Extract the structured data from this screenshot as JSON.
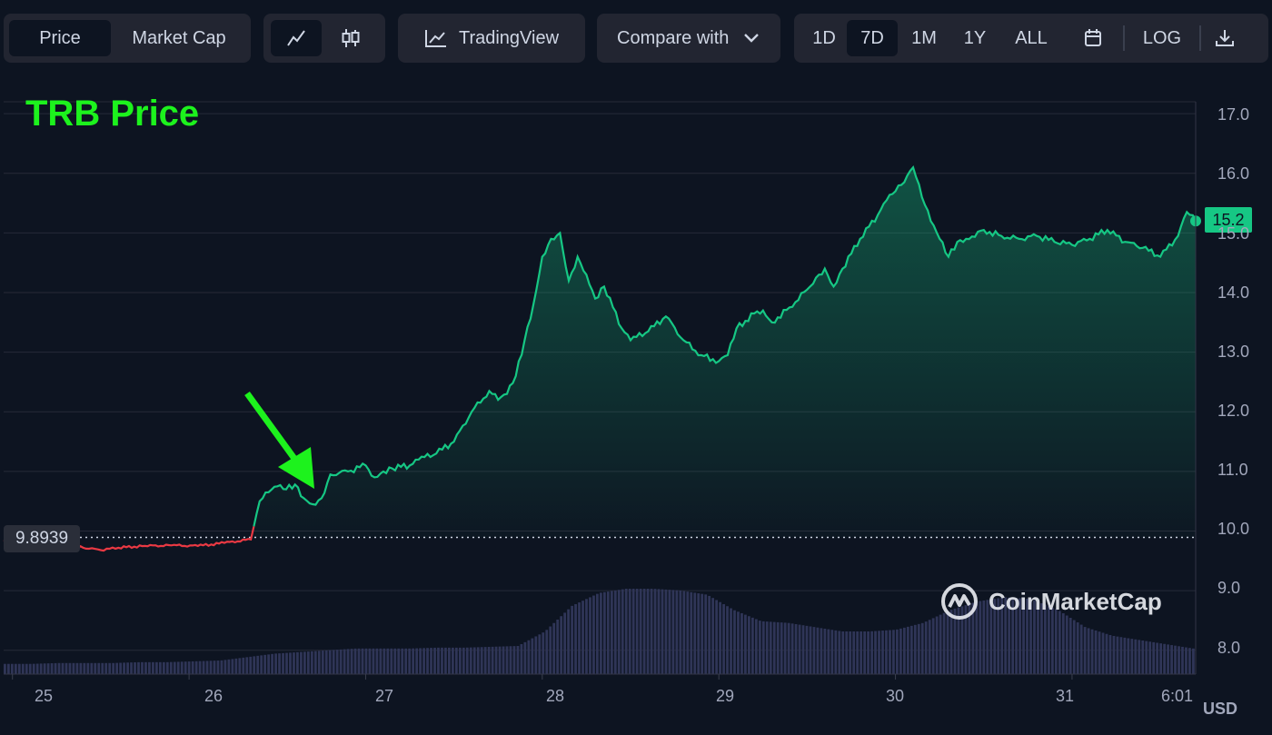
{
  "toolbar": {
    "view_tabs": [
      "Price",
      "Market Cap"
    ],
    "tradingview_label": "TradingView",
    "compare_label": "Compare with",
    "ranges": [
      "1D",
      "7D",
      "1M",
      "1Y",
      "ALL"
    ],
    "active_range": "7D",
    "log_label": "LOG",
    "icons": {
      "line_chart": "line-chart-icon",
      "candles": "candlestick-icon",
      "tradingview": "tradingview-chart-icon",
      "compare": "chevron-down-icon",
      "calendar": "calendar-icon",
      "download": "download-icon"
    }
  },
  "annotation_title": "TRB Price",
  "watermark": "CoinMarketCap",
  "current_price_label": "15.2",
  "open_price_label": "9.8939",
  "currency_label": "USD",
  "colors": {
    "up": "#16c784",
    "down": "#ea3943",
    "annotation": "#1df21d",
    "volume": "#2f3557",
    "background": "#0d1421"
  },
  "chart_data": {
    "type": "line",
    "ylim": [
      7.6,
      17.2
    ],
    "y_ticks": [
      "17.0",
      "16.0",
      "15.0",
      "14.0",
      "13.0",
      "12.0",
      "11.0",
      "10.0",
      "9.0",
      "8.0"
    ],
    "x_tick_labels": [
      "25",
      "26",
      "27",
      "28",
      "29",
      "30",
      "31",
      "6:01 P"
    ],
    "baseline": 9.8939,
    "series": [
      {
        "x": [
          24.95,
          25.1,
          25.25,
          25.4,
          25.5,
          25.6,
          25.75,
          25.9,
          26.05,
          26.2,
          26.35,
          26.4,
          26.45,
          26.5,
          26.55,
          26.6,
          26.65,
          26.7,
          26.75,
          26.8,
          26.9,
          27.0,
          27.05,
          27.1,
          27.15,
          27.25,
          27.3,
          27.4,
          27.5,
          27.6,
          27.7,
          27.75,
          27.8,
          27.85,
          27.9,
          27.95,
          28.0,
          28.05,
          28.1,
          28.15,
          28.2,
          28.25,
          28.3,
          28.35,
          28.45,
          28.5,
          28.6,
          28.7,
          28.8,
          28.9,
          29.0,
          29.05,
          29.1,
          29.2,
          29.25,
          29.3,
          29.4,
          29.5,
          29.55,
          29.6,
          29.65,
          29.7,
          29.8,
          29.9,
          29.95,
          30.0,
          30.05,
          30.1,
          30.15,
          30.2,
          30.25,
          30.3,
          30.35,
          30.4,
          30.5,
          30.6,
          30.7,
          30.8,
          30.9,
          31.0,
          31.1,
          31.2,
          31.3,
          31.4,
          31.5,
          31.6,
          31.65,
          31.7
        ],
        "y": [
          9.85,
          9.83,
          9.8,
          9.72,
          9.68,
          9.72,
          9.75,
          9.76,
          9.75,
          9.8,
          9.86,
          10.5,
          10.65,
          10.75,
          10.7,
          10.78,
          10.55,
          10.45,
          10.55,
          10.95,
          11.0,
          11.1,
          10.9,
          11.0,
          11.05,
          11.1,
          11.2,
          11.3,
          11.5,
          12.0,
          12.35,
          12.2,
          12.3,
          12.6,
          13.2,
          13.8,
          14.6,
          14.9,
          15.0,
          14.2,
          14.6,
          14.3,
          13.9,
          14.1,
          13.4,
          13.2,
          13.35,
          13.6,
          13.2,
          12.95,
          12.85,
          12.95,
          13.4,
          13.65,
          13.7,
          13.5,
          13.75,
          14.05,
          14.25,
          14.4,
          14.1,
          14.4,
          14.9,
          15.3,
          15.55,
          15.7,
          15.85,
          16.1,
          15.6,
          15.2,
          14.9,
          14.6,
          14.85,
          14.9,
          15.05,
          14.95,
          14.9,
          14.95,
          14.85,
          14.8,
          14.9,
          15.05,
          14.85,
          14.75,
          14.6,
          14.95,
          15.35,
          15.2
        ]
      }
    ],
    "volume_relative": [
      0.12,
      0.12,
      0.13,
      0.13,
      0.13,
      0.14,
      0.14,
      0.15,
      0.16,
      0.2,
      0.24,
      0.26,
      0.28,
      0.3,
      0.3,
      0.3,
      0.31,
      0.31,
      0.32,
      0.33,
      0.5,
      0.8,
      0.95,
      1.0,
      1.0,
      0.98,
      0.93,
      0.75,
      0.62,
      0.6,
      0.55,
      0.5,
      0.5,
      0.52,
      0.6,
      0.75,
      0.85,
      0.9,
      0.88,
      0.75,
      0.55,
      0.45,
      0.4,
      0.35,
      0.3
    ]
  }
}
